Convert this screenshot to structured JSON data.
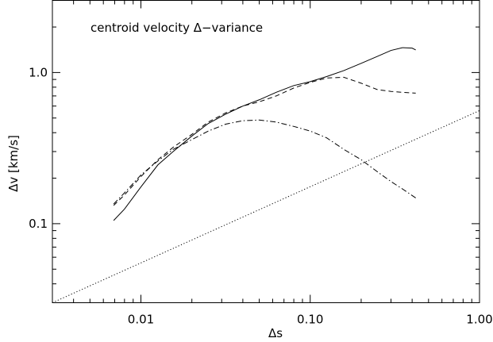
{
  "chart_data": {
    "type": "line",
    "title": "centroid velocity Δ−variance",
    "xlabel": "Δs",
    "ylabel": "Δv  [km/s]",
    "xscale": "log",
    "yscale": "log",
    "xlim": [
      0.003,
      1.0
    ],
    "ylim": [
      0.03,
      3.0
    ],
    "xticks": [
      {
        "value": 0.01,
        "label": "0.01"
      },
      {
        "value": 0.1,
        "label": "0.10"
      },
      {
        "value": 1.0,
        "label": "1.00"
      }
    ],
    "yticks": [
      {
        "value": 0.1,
        "label": "0.1"
      },
      {
        "value": 1.0,
        "label": "1.0"
      }
    ],
    "grid": false,
    "legend": "none",
    "series": [
      {
        "style": "solid",
        "x": [
          0.0069,
          0.008,
          0.01,
          0.0126,
          0.0155,
          0.02,
          0.025,
          0.0316,
          0.04,
          0.05,
          0.063,
          0.08,
          0.1,
          0.125,
          0.158,
          0.2,
          0.25,
          0.3,
          0.35,
          0.4,
          0.42
        ],
        "y": [
          0.105,
          0.125,
          0.175,
          0.245,
          0.3,
          0.38,
          0.46,
          0.53,
          0.6,
          0.66,
          0.74,
          0.82,
          0.87,
          0.94,
          1.03,
          1.15,
          1.28,
          1.4,
          1.46,
          1.45,
          1.41
        ]
      },
      {
        "style": "dashed",
        "x": [
          0.0069,
          0.008,
          0.01,
          0.0126,
          0.0155,
          0.02,
          0.025,
          0.0316,
          0.04,
          0.05,
          0.063,
          0.08,
          0.1,
          0.125,
          0.158,
          0.2,
          0.25,
          0.3,
          0.35,
          0.42
        ],
        "y": [
          0.132,
          0.155,
          0.205,
          0.265,
          0.32,
          0.39,
          0.47,
          0.54,
          0.6,
          0.64,
          0.7,
          0.79,
          0.86,
          0.92,
          0.93,
          0.85,
          0.77,
          0.75,
          0.74,
          0.73
        ]
      },
      {
        "style": "dash-dot",
        "x": [
          0.0069,
          0.008,
          0.01,
          0.0126,
          0.0155,
          0.02,
          0.025,
          0.0316,
          0.04,
          0.05,
          0.063,
          0.08,
          0.1,
          0.125,
          0.158,
          0.2,
          0.25,
          0.3,
          0.35,
          0.42
        ],
        "y": [
          0.135,
          0.16,
          0.21,
          0.26,
          0.31,
          0.36,
          0.41,
          0.455,
          0.48,
          0.485,
          0.47,
          0.44,
          0.41,
          0.37,
          0.31,
          0.265,
          0.22,
          0.19,
          0.17,
          0.148
        ]
      },
      {
        "style": "dotted",
        "x": [
          0.003,
          1.0
        ],
        "y": [
          0.03,
          0.56
        ]
      }
    ]
  }
}
